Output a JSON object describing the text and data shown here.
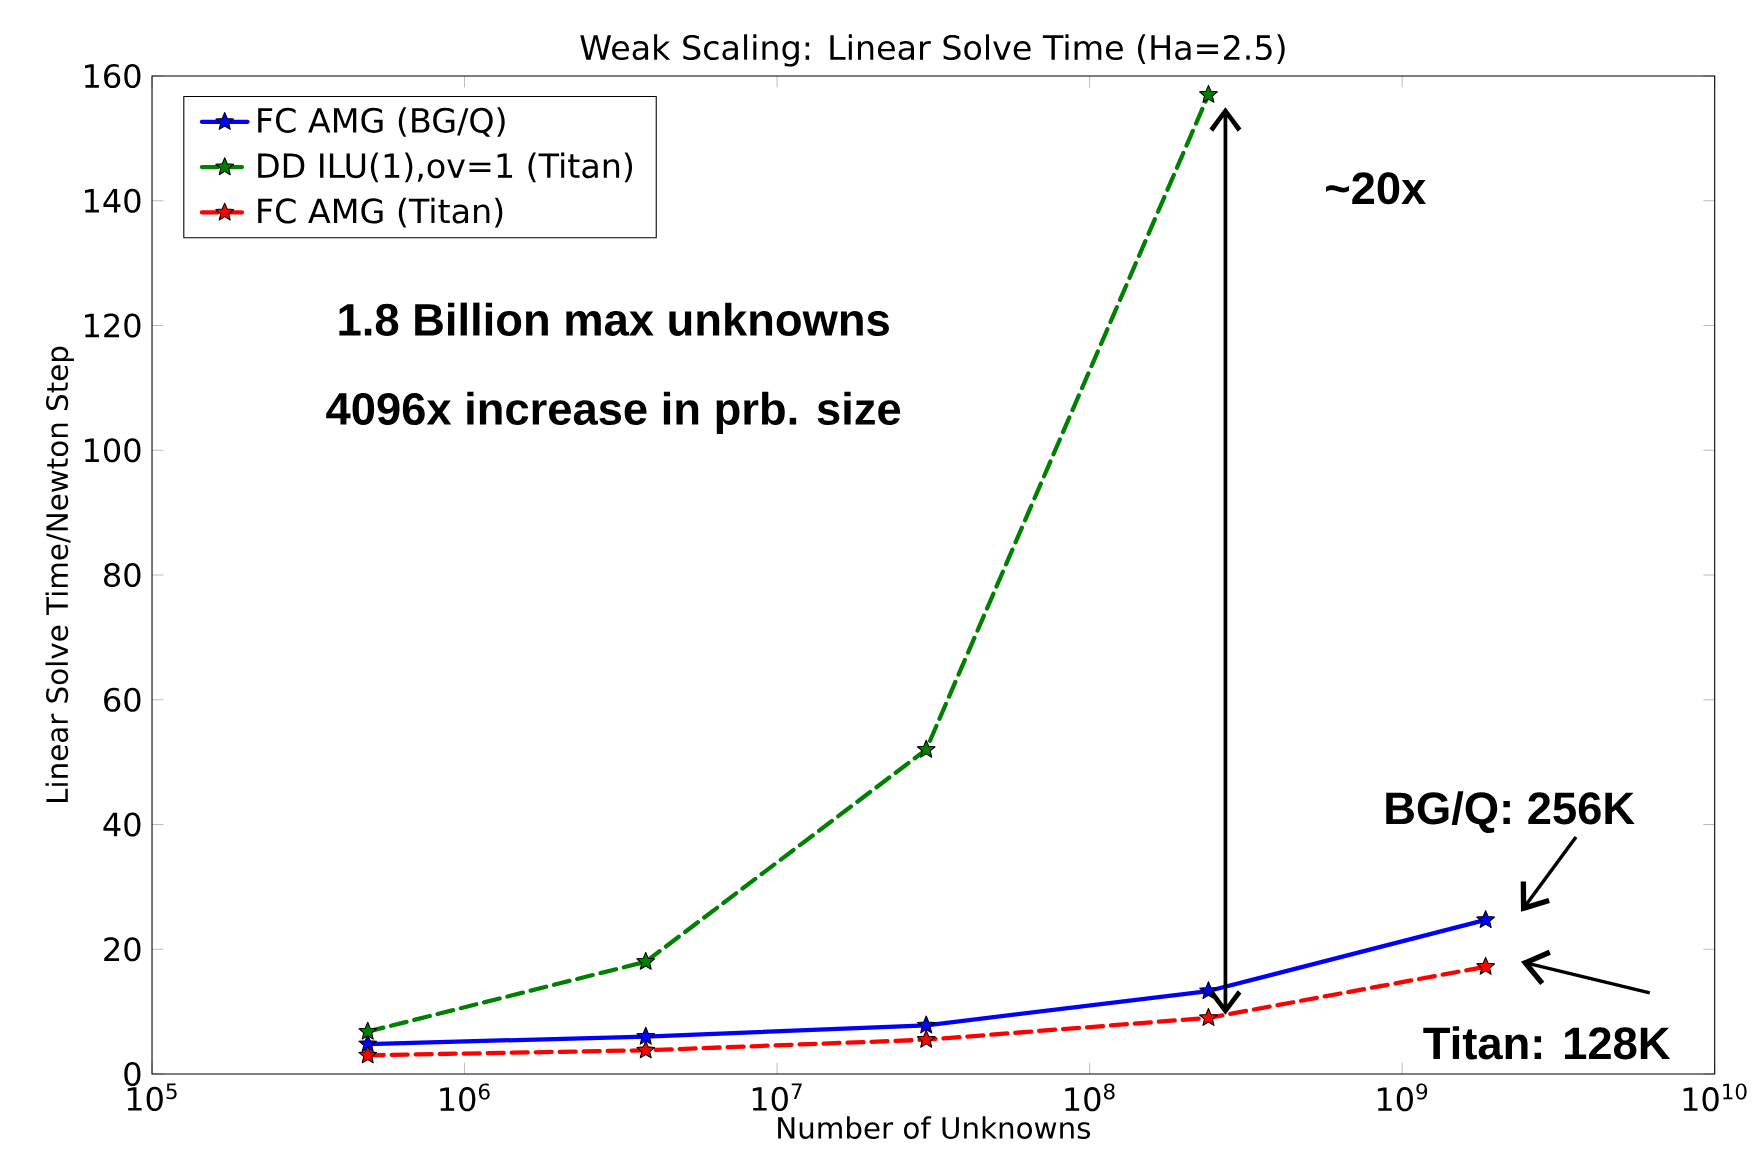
{
  "chart_data": {
    "type": "line",
    "title": "Weak Scaling: Linear Solve Time (Ha=2.5)",
    "xlabel": "Number of Unknowns",
    "ylabel": "Linear Solve Time/Newton Step",
    "log": "x",
    "legend": "top left",
    "marker": "star",
    "xlim": [
      100000,
      10000000000
    ],
    "ylim": [
      0,
      160
    ],
    "xticks": [
      {
        "value": 100000,
        "label": "10$^{5}$"
      },
      {
        "value": 1000000,
        "label": "10$^{6}$"
      },
      {
        "value": 10000000,
        "label": "10$^{7}$"
      },
      {
        "value": 100000000,
        "label": "10$^{8}$"
      },
      {
        "value": 1000000000,
        "label": "10$^{9}$"
      },
      {
        "value": 10000000000,
        "label": "10$^{10}$"
      }
    ],
    "yticks": [
      0,
      20,
      40,
      60,
      80,
      100,
      120,
      140,
      160
    ],
    "series": [
      {
        "name": "FC AMG (BG/Q)",
        "color": "#0000ff",
        "line_style": "solid",
        "x": [
          490000,
          3800000,
          30000000,
          240000000,
          1850000000
        ],
        "values": [
          4.8,
          6,
          7.8,
          13.3,
          24.7
        ]
      },
      {
        "name": "DD ILU(1),ov=1 (Titan)",
        "color": "#008000",
        "line_style": "dashed",
        "x": [
          490000,
          3800000,
          30000000,
          240000000
        ],
        "values": [
          6.8,
          18,
          52,
          157
        ]
      },
      {
        "name": "FC AMG (Titan)",
        "color": "#ff0000",
        "line_style": "dashed",
        "x": [
          490000,
          3800000,
          30000000,
          240000000,
          1850000000
        ],
        "values": [
          3,
          3.8,
          5.5,
          9,
          17.2
        ]
      }
    ],
    "annotations": [
      "1.8 Billion max unknowns",
      "4096x increase in prb. size",
      "~20x",
      "BG/Q: 256K",
      "Titan: 128K"
    ]
  }
}
